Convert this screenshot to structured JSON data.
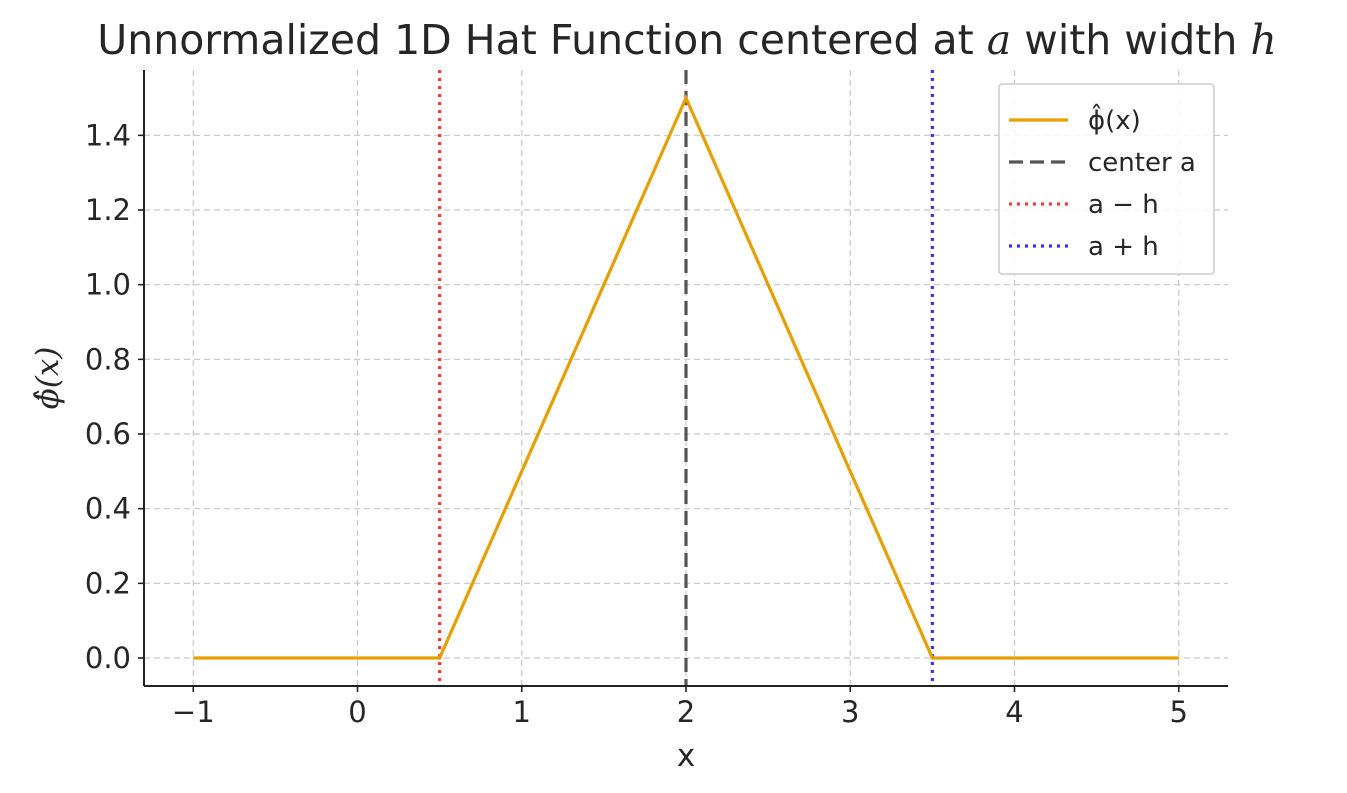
{
  "chart_data": {
    "type": "line",
    "title": "Unnormalized 1D Hat Function centered at",
    "title_var_a": "a",
    "title_mid": "with width",
    "title_var_h": "h",
    "xlabel": "x",
    "ylabel": "ϕ̂(x)",
    "xlim": [
      -1.3,
      5.3
    ],
    "ylim": [
      -0.075,
      1.575
    ],
    "x_ticks": [
      -1,
      0,
      1,
      2,
      3,
      4,
      5
    ],
    "x_tick_labels": [
      "−1",
      "0",
      "1",
      "2",
      "3",
      "4",
      "5"
    ],
    "y_ticks": [
      0.0,
      0.2,
      0.4,
      0.6,
      0.8,
      1.0,
      1.2,
      1.4
    ],
    "y_tick_labels": [
      "0.0",
      "0.2",
      "0.4",
      "0.6",
      "0.8",
      "1.0",
      "1.2",
      "1.4"
    ],
    "grid": true,
    "legend_position": "top-right",
    "series": [
      {
        "name": "ϕ̂(x)",
        "color": "#E69F00",
        "style": "solid",
        "x": [
          -1,
          0.5,
          2,
          3.5,
          5
        ],
        "y": [
          0,
          0,
          1.5,
          0,
          0
        ]
      }
    ],
    "vlines": [
      {
        "name": "center a",
        "x": 2,
        "color": "#555555",
        "style": "dashed"
      },
      {
        "name": "a − h",
        "x": 0.5,
        "color": "#FF3B30",
        "style": "dotted"
      },
      {
        "name": "a + h",
        "x": 3.5,
        "color": "#3333FF",
        "style": "dotted"
      }
    ],
    "legend": [
      {
        "label": "ϕ̂(x)",
        "color": "#E69F00",
        "style": "solid"
      },
      {
        "label": "center a",
        "color": "#555555",
        "style": "dashed"
      },
      {
        "label": "a − h",
        "color": "#FF3B30",
        "style": "dotted"
      },
      {
        "label": "a + h",
        "color": "#3333FF",
        "style": "dotted"
      }
    ]
  }
}
